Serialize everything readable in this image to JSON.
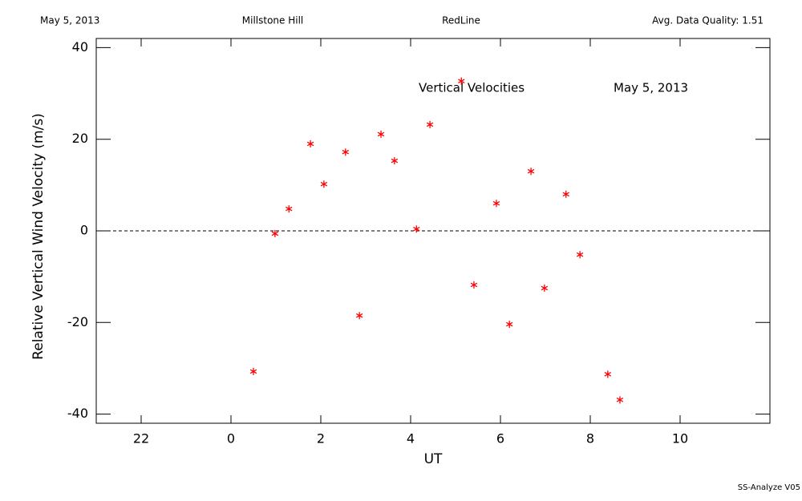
{
  "chart_data": {
    "type": "scatter",
    "header": [
      "May 5, 2013",
      "Millstone Hill",
      "RedLine",
      "Avg. Data Quality: 1.51"
    ],
    "annotations": [
      "Vertical Velocities",
      "May 5, 2013"
    ],
    "xlabel": "UT",
    "ylabel": "Relative Vertical Wind Velocity (m/s)",
    "footer": "SS-Analyze V05",
    "xlim": [
      -3,
      12
    ],
    "ylim": [
      -42,
      42
    ],
    "xticks": [
      {
        "value": -2,
        "label": "22"
      },
      0,
      2,
      4,
      6,
      8,
      10
    ],
    "yticks": [
      40,
      20,
      0,
      -20,
      -40
    ],
    "reference_line": 0,
    "series": [
      {
        "color": "#ff0000",
        "x": [
          0.5,
          0.98,
          1.29,
          1.77,
          2.07,
          2.55,
          2.86,
          3.34,
          3.64,
          4.13,
          4.43,
          5.13,
          5.41,
          5.91,
          6.2,
          6.68,
          6.98,
          7.46,
          7.77,
          8.39,
          8.66
        ],
        "values": [
          -30.7,
          -0.6,
          4.8,
          19.0,
          10.2,
          17.2,
          -18.5,
          21.1,
          15.3,
          0.4,
          23.2,
          32.7,
          -11.8,
          6.0,
          -20.4,
          13.0,
          -12.5,
          8.0,
          -5.2,
          -31.3,
          -36.9
        ]
      }
    ]
  }
}
